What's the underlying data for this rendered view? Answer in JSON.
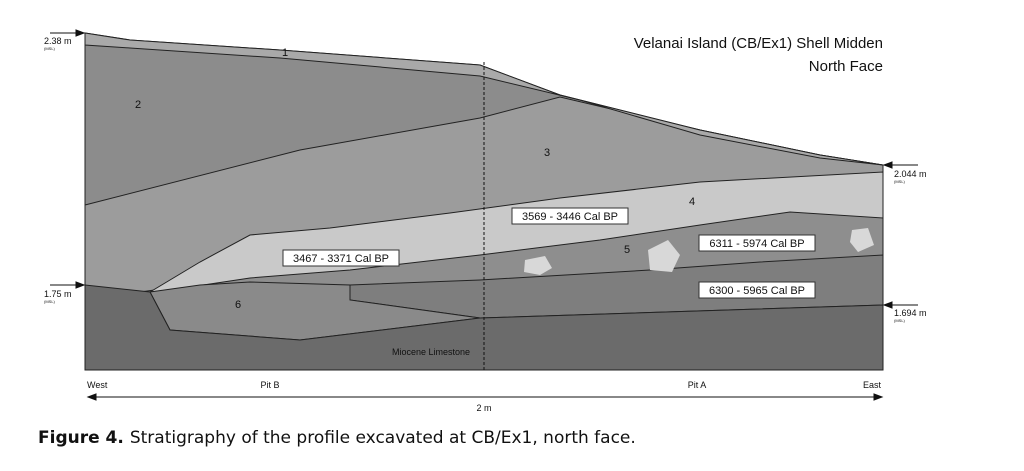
{
  "title": [
    "Velanai Island (CB/Ex1) Shell Midden",
    "North Face"
  ],
  "elevations": [
    {
      "label": "2.38 m",
      "note": "(MSL)"
    },
    {
      "label": "2.044 m",
      "note": "(MSL)"
    },
    {
      "label": "1.75 m",
      "note": "(MSL)"
    },
    {
      "label": "1.694 m",
      "note": "(MSL)"
    }
  ],
  "layers": [
    "1",
    "2",
    "3",
    "4",
    "5",
    "6"
  ],
  "dates": [
    "3569 - 3446 Cal BP",
    "3467 - 3371 Cal BP",
    "6311 - 5974 Cal BP",
    "6300 - 5965 Cal BP"
  ],
  "bedrock": "Miocene Limestone",
  "axis": {
    "west": "West",
    "pit_b": "Pit B",
    "pit_a": "Pit A",
    "east": "East",
    "scale": "2 m"
  },
  "caption": {
    "label": "Figure 4.",
    "text": "Stratigraphy of the profile excavated at CB/Ex1, north face."
  }
}
